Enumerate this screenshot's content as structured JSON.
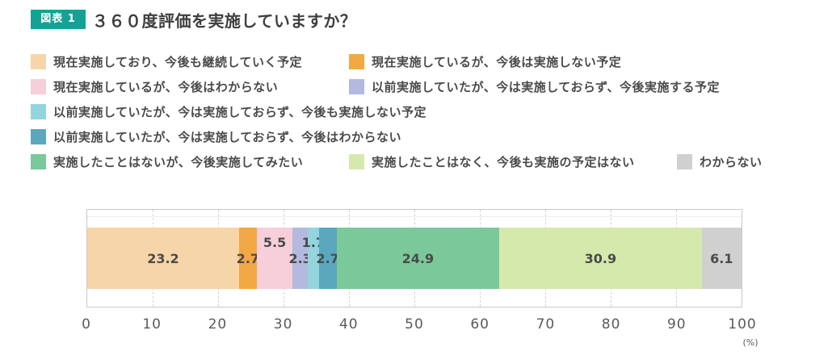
{
  "header": {
    "badge_label": "図表 1",
    "badge_color": "#14a295",
    "title": "３６０度評価を実施していますか？"
  },
  "chart_data": {
    "type": "bar",
    "stacked": true,
    "orientation": "horizontal",
    "title": "３６０度評価を実施していますか？",
    "unit": "(%)",
    "xlim": [
      0,
      100
    ],
    "ticks": [
      0,
      10,
      20,
      30,
      40,
      50,
      60,
      70,
      80,
      90,
      100
    ],
    "grid": "dashed-vertical",
    "legend_position": "top",
    "series": [
      {
        "name": "現在実施しており、今後も継続していく予定",
        "value": 23.2,
        "color": "#f6d6a9",
        "label_offset": "normal"
      },
      {
        "name": "現在実施しているが、今後は実施しない予定",
        "value": 2.7,
        "color": "#f2a843",
        "label_offset": "normal"
      },
      {
        "name": "現在実施しているが、今後はわからない",
        "value": 5.5,
        "color": "#f7cfdb",
        "label_offset": "raised"
      },
      {
        "name": "以前実施していたが、今は実施しておらず、今後実施する予定",
        "value": 2.3,
        "color": "#b4b9df",
        "label_offset": "normal"
      },
      {
        "name": "以前実施していたが、今は実施しておらず、今後も実施しない予定",
        "value": 1.7,
        "color": "#94d4dd",
        "label_offset": "raised"
      },
      {
        "name": "以前実施していたが、今は実施しておらず、今後はわからない",
        "value": 2.7,
        "color": "#5ba8be",
        "label_offset": "normal"
      },
      {
        "name": "実施したことはないが、今後実施してみたい",
        "value": 24.9,
        "color": "#7bc89b",
        "label_offset": "normal"
      },
      {
        "name": "実施したことはなく、今後も実施の予定はない",
        "value": 30.9,
        "color": "#d6e9ad",
        "label_offset": "normal"
      },
      {
        "name": "わからない",
        "value": 6.1,
        "color": "#d0d0d0",
        "label_offset": "normal"
      }
    ]
  }
}
